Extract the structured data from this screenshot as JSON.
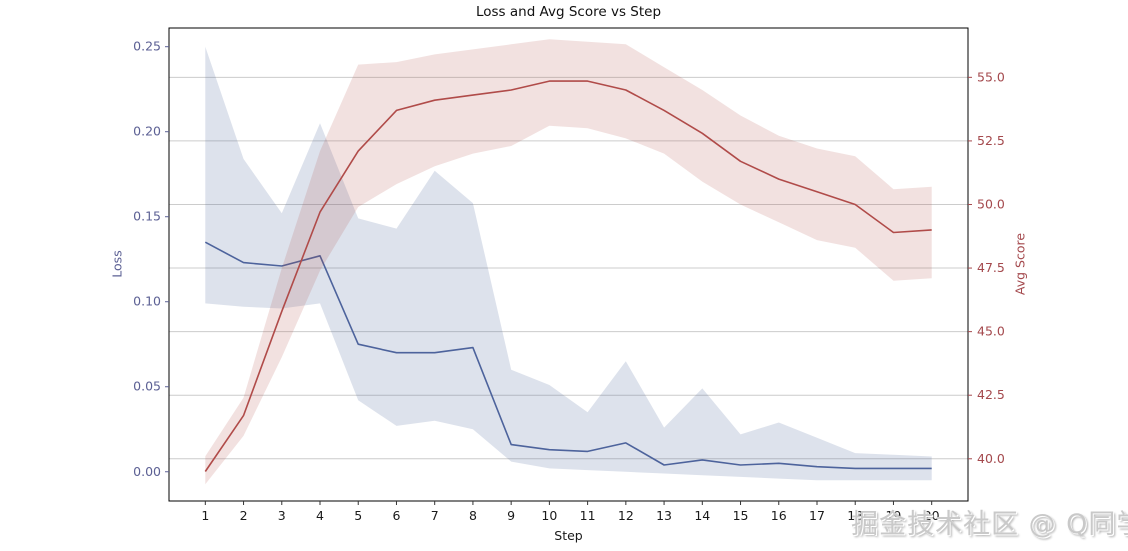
{
  "title": "Loss and Avg Score vs Step",
  "watermark": {
    "text": "掘金技术社区 @ Q同学"
  },
  "chart_data": {
    "type": "line",
    "title": "Loss and Avg Score vs Step",
    "xlabel": "Step",
    "ylabel_left": "Loss",
    "ylabel_right": "Avg Score",
    "legend": "none",
    "grid": "horizontal gridlines at right-axis ticks",
    "x": [
      1,
      2,
      3,
      4,
      5,
      6,
      7,
      8,
      9,
      10,
      11,
      12,
      13,
      14,
      15,
      16,
      17,
      18,
      19,
      20
    ],
    "x_tick_labels": [
      "1",
      "2",
      "3",
      "4",
      "5",
      "6",
      "7",
      "8",
      "9",
      "10",
      "11",
      "12",
      "13",
      "14",
      "15",
      "16",
      "17",
      "18",
      "19",
      "20"
    ],
    "xlim": [
      0.05,
      20.95
    ],
    "ylim_left": [
      -0.0172,
      0.261
    ],
    "ylim_right": [
      38.34,
      56.94
    ],
    "left_tick_values": [
      0.0,
      0.05,
      0.1,
      0.15,
      0.2,
      0.25
    ],
    "left_tick_labels": [
      "0.00",
      "0.05",
      "0.10",
      "0.15",
      "0.20",
      "0.25"
    ],
    "right_tick_values": [
      40.0,
      42.5,
      45.0,
      47.5,
      50.0,
      52.5,
      55.0
    ],
    "right_tick_labels": [
      "40.0",
      "42.5",
      "45.0",
      "47.5",
      "50.0",
      "52.5",
      "55.0"
    ],
    "series": [
      {
        "name": "Loss",
        "axis": "left",
        "values": [
          0.135,
          0.123,
          0.121,
          0.127,
          0.075,
          0.07,
          0.07,
          0.073,
          0.016,
          0.013,
          0.012,
          0.017,
          0.004,
          0.007,
          0.004,
          0.005,
          0.003,
          0.002,
          0.002,
          0.002
        ],
        "band_low": [
          0.099,
          0.097,
          0.096,
          0.099,
          0.042,
          0.027,
          0.03,
          0.025,
          0.006,
          0.002,
          0.001,
          0.0,
          -0.001,
          -0.002,
          -0.003,
          -0.004,
          -0.005,
          -0.005,
          -0.005,
          -0.005
        ],
        "band_high": [
          0.25,
          0.184,
          0.152,
          0.205,
          0.149,
          0.143,
          0.177,
          0.158,
          0.06,
          0.051,
          0.035,
          0.065,
          0.026,
          0.049,
          0.022,
          0.029,
          0.02,
          0.011,
          0.01,
          0.009
        ]
      },
      {
        "name": "Avg Score",
        "axis": "right",
        "values": [
          39.5,
          41.7,
          45.8,
          49.7,
          52.1,
          53.7,
          54.1,
          54.3,
          54.5,
          54.85,
          54.85,
          54.5,
          53.7,
          52.8,
          51.7,
          51.0,
          50.5,
          50.0,
          48.9,
          49.0
        ],
        "band_low": [
          39.0,
          40.9,
          44.0,
          47.4,
          49.9,
          50.8,
          51.5,
          52.0,
          52.3,
          53.1,
          53.0,
          52.6,
          52.0,
          50.9,
          50.0,
          49.3,
          48.6,
          48.3,
          47.0,
          47.1
        ],
        "band_high": [
          40.1,
          42.4,
          47.5,
          52.1,
          55.5,
          55.6,
          55.9,
          56.1,
          56.3,
          56.5,
          56.4,
          56.3,
          55.4,
          54.5,
          53.5,
          52.7,
          52.2,
          51.9,
          50.6,
          50.7
        ]
      }
    ]
  },
  "colors": {
    "loss_line": "#4d639c",
    "loss_band": "rgba(77,99,156,0.19)",
    "avg_line": "#b04b49",
    "avg_band": "rgba(176,75,73,0.17)",
    "grid": "#cccccc",
    "spine": "#000000",
    "left_axis_text": "#5c6094",
    "right_axis_text": "#a4494d",
    "x_axis_text": "#1a1a1a"
  }
}
